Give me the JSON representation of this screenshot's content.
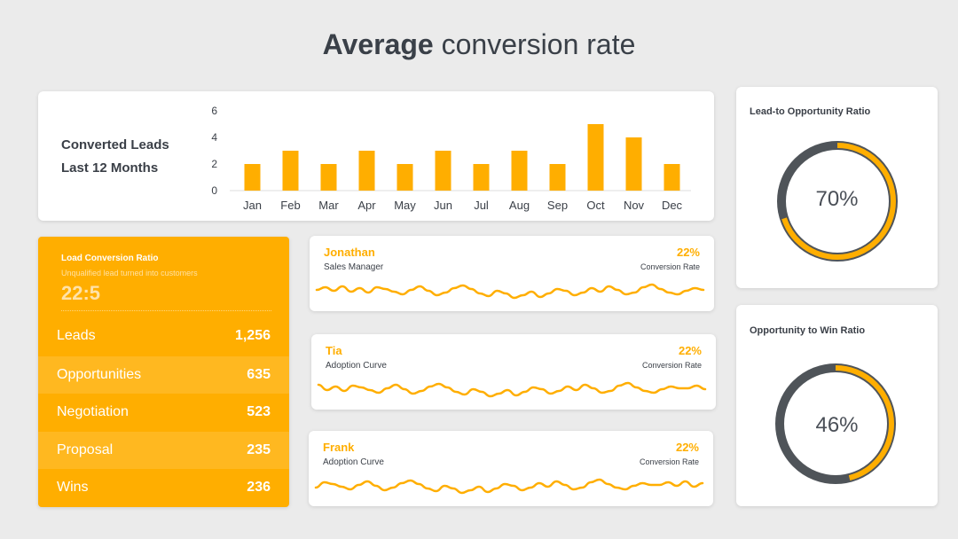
{
  "header": {
    "title_bold": "Average",
    "title_rest": "conversion rate"
  },
  "converted_leads": {
    "line1": "Converted Leads",
    "line2": "Last 12 Months"
  },
  "chart_data": {
    "type": "bar",
    "categories": [
      "Jan",
      "Feb",
      "Mar",
      "Apr",
      "May",
      "Jun",
      "Jul",
      "Aug",
      "Sep",
      "Oct",
      "Nov",
      "Dec"
    ],
    "values": [
      2,
      3,
      2,
      3,
      2,
      3,
      2,
      3,
      2,
      5,
      4,
      2
    ],
    "ylim": [
      0,
      6
    ],
    "yticks": [
      0,
      2,
      4,
      6
    ],
    "title": "",
    "xlabel": "",
    "ylabel": "",
    "grid": false,
    "bar_color": "#ffae00"
  },
  "funnel": {
    "title": "Load Conversion Ratio",
    "subtitle": "Unqualified lead turned into customers",
    "ratio": "22:5",
    "rows": [
      {
        "label": "Leads",
        "value": "1,256"
      },
      {
        "label": "Opportunities",
        "value": "635"
      },
      {
        "label": "Negotiation",
        "value": "523"
      },
      {
        "label": "Proposal",
        "value": "235"
      },
      {
        "label": "Wins",
        "value": "236"
      }
    ]
  },
  "people": [
    {
      "name": "Jonathan",
      "role": "Sales Manager",
      "percent": "22%",
      "percent_label": "Conversion Rate"
    },
    {
      "name": "Tia",
      "role": "Adoption Curve",
      "percent": "22%",
      "percent_label": "Conversion Rate"
    },
    {
      "name": "Frank",
      "role": "Adoption Curve",
      "percent": "22%",
      "percent_label": "Conversion Rate"
    }
  ],
  "donuts": [
    {
      "title": "Lead-to  Opportunity Ratio",
      "value": "70%",
      "fraction": 0.7
    },
    {
      "title": "Opportunity to Win Ratio",
      "value": "46%",
      "fraction": 0.46
    }
  ],
  "colors": {
    "accent": "#ffae00",
    "dark": "#4f5459",
    "background": "#ebebeb"
  }
}
